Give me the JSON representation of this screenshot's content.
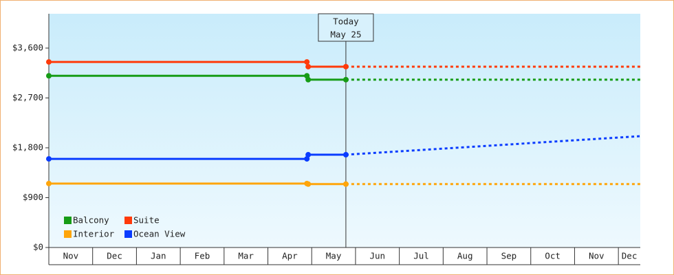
{
  "chart_data": {
    "type": "line",
    "x": [
      0,
      5.89,
      5.92,
      6.78,
      13.5
    ],
    "xlim": [
      0,
      13.5
    ],
    "month_ticks": [
      0,
      1,
      2,
      3,
      4,
      5,
      6,
      7,
      8,
      9,
      10,
      11,
      12,
      13
    ],
    "categories": [
      "Nov",
      "Dec",
      "Jan",
      "Feb",
      "Mar",
      "Apr",
      "May",
      "Jun",
      "Jul",
      "Aug",
      "Sep",
      "Oct",
      "Nov",
      "Dec"
    ],
    "ylim": [
      0,
      4220
    ],
    "yticks": [
      {
        "value": 0,
        "label": "$0"
      },
      {
        "value": 900,
        "label": "$900"
      },
      {
        "value": 1800,
        "label": "$1,800"
      },
      {
        "value": 2700,
        "label": "$2,700"
      },
      {
        "value": 3600,
        "label": "$3,600"
      }
    ],
    "today": {
      "x": 6.78,
      "label": "Today",
      "date": "May 25"
    },
    "series": [
      {
        "name": "Balcony",
        "color": "#169c16",
        "values": [
          3100,
          3100,
          3030,
          3030,
          3030
        ]
      },
      {
        "name": "Suite",
        "color": "#ff3a0a",
        "values": [
          3350,
          3350,
          3265,
          3265,
          3265
        ]
      },
      {
        "name": "Interior",
        "color": "#ffa50a",
        "values": [
          1155,
          1155,
          1145,
          1145,
          1145
        ]
      },
      {
        "name": "Ocean View",
        "color": "#0a3cff",
        "values": [
          1600,
          1600,
          1675,
          1675,
          2010
        ]
      }
    ]
  }
}
